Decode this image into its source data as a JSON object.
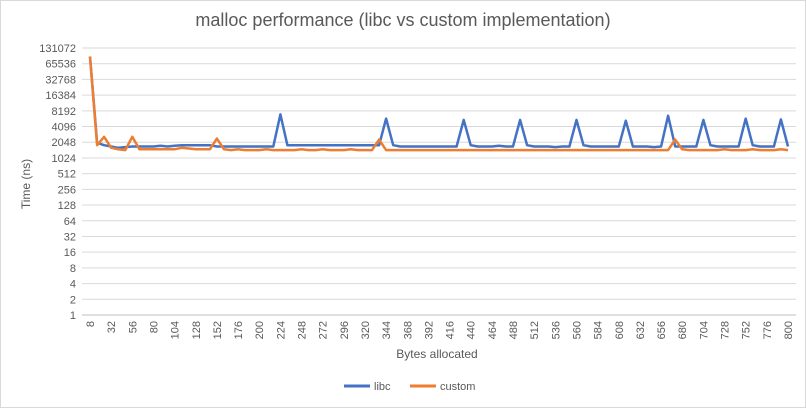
{
  "chart_data": {
    "type": "line",
    "title": "malloc performance (libc vs custom implementation)",
    "xlabel": "Bytes allocated",
    "ylabel": "Time (ns)",
    "y_scale": "log2",
    "ylim": [
      1,
      131072
    ],
    "y_ticks": [
      1,
      2,
      4,
      8,
      16,
      32,
      64,
      128,
      256,
      512,
      1024,
      2048,
      4096,
      8192,
      16384,
      32768,
      65536,
      131072
    ],
    "x": [
      8,
      16,
      24,
      32,
      40,
      48,
      56,
      64,
      72,
      80,
      88,
      96,
      104,
      112,
      120,
      128,
      136,
      144,
      152,
      160,
      168,
      176,
      184,
      192,
      200,
      208,
      216,
      224,
      232,
      240,
      248,
      256,
      264,
      272,
      280,
      288,
      296,
      304,
      312,
      320,
      328,
      336,
      344,
      352,
      360,
      368,
      376,
      384,
      392,
      400,
      408,
      416,
      424,
      432,
      440,
      448,
      456,
      464,
      472,
      480,
      488,
      496,
      504,
      512,
      520,
      528,
      536,
      544,
      552,
      560,
      568,
      576,
      584,
      592,
      600,
      608,
      616,
      624,
      632,
      640,
      648,
      656,
      664,
      672,
      680,
      688,
      696,
      704,
      712,
      720,
      728,
      736,
      744,
      752,
      760,
      768,
      776,
      784,
      792,
      800
    ],
    "x_tick_labels": [
      "8",
      "32",
      "56",
      "80",
      "104",
      "128",
      "152",
      "176",
      "200",
      "224",
      "248",
      "272",
      "296",
      "320",
      "344",
      "368",
      "392",
      "416",
      "440",
      "464",
      "488",
      "512",
      "536",
      "560",
      "584",
      "608",
      "632",
      "656",
      "680",
      "704",
      "728",
      "752",
      "776",
      "800"
    ],
    "grid": true,
    "legend_position": "bottom",
    "series": [
      {
        "name": "libc",
        "color": "#4472c4",
        "values": [
          90000,
          2000,
          1800,
          1700,
          1600,
          1650,
          1700,
          1700,
          1700,
          1700,
          1750,
          1700,
          1750,
          1800,
          1800,
          1800,
          1800,
          1800,
          1700,
          1700,
          1700,
          1700,
          1700,
          1700,
          1700,
          1700,
          1700,
          7000,
          1800,
          1800,
          1800,
          1800,
          1800,
          1800,
          1800,
          1800,
          1800,
          1800,
          1800,
          1800,
          1800,
          1800,
          5800,
          1800,
          1700,
          1700,
          1700,
          1700,
          1700,
          1700,
          1700,
          1700,
          1700,
          5500,
          1800,
          1700,
          1700,
          1700,
          1750,
          1700,
          1700,
          5500,
          1800,
          1700,
          1700,
          1700,
          1650,
          1700,
          1700,
          5500,
          1800,
          1700,
          1700,
          1700,
          1700,
          1700,
          5300,
          1700,
          1700,
          1700,
          1650,
          1700,
          6600,
          1700,
          1700,
          1700,
          1700,
          5500,
          1800,
          1700,
          1700,
          1700,
          1700,
          5800,
          1800,
          1700,
          1700,
          1700,
          5600,
          1700
        ]
      },
      {
        "name": "custom",
        "color": "#ed7d31",
        "values": [
          90000,
          1800,
          2600,
          1600,
          1500,
          1450,
          2600,
          1500,
          1500,
          1500,
          1500,
          1500,
          1500,
          1600,
          1550,
          1500,
          1500,
          1500,
          2400,
          1500,
          1450,
          1500,
          1450,
          1450,
          1450,
          1500,
          1450,
          1450,
          1450,
          1450,
          1500,
          1450,
          1450,
          1500,
          1450,
          1450,
          1450,
          1500,
          1450,
          1450,
          1450,
          2300,
          1450,
          1450,
          1450,
          1450,
          1450,
          1450,
          1450,
          1450,
          1450,
          1450,
          1450,
          1450,
          1450,
          1450,
          1450,
          1450,
          1450,
          1450,
          1450,
          1450,
          1450,
          1450,
          1450,
          1450,
          1450,
          1450,
          1450,
          1450,
          1450,
          1450,
          1450,
          1450,
          1450,
          1450,
          1450,
          1450,
          1450,
          1450,
          1450,
          1450,
          1450,
          2300,
          1500,
          1450,
          1450,
          1450,
          1450,
          1450,
          1500,
          1450,
          1450,
          1450,
          1500,
          1450,
          1450,
          1450,
          1500,
          1450
        ]
      }
    ]
  }
}
